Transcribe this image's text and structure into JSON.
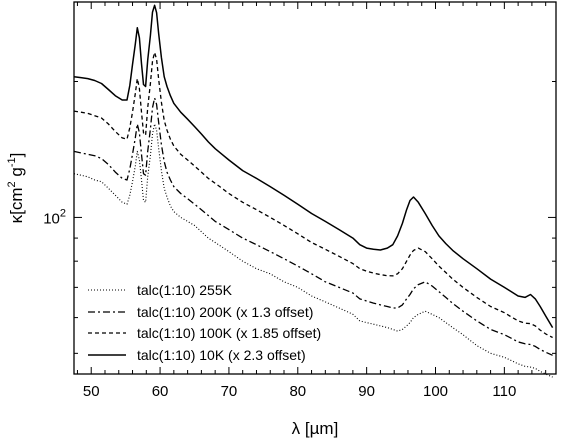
{
  "chart_data": {
    "type": "line",
    "xlabel": "λ [µm]",
    "ylabel": {
      "base": "κ[cm",
      "sup1": "2",
      "mid": " g",
      "sup2": "-1",
      "end": "]"
    },
    "xlim": [
      47.5,
      117.5
    ],
    "ylim": [
      45,
      300
    ],
    "yscale": "log",
    "x_ticks": [
      {
        "value": 50,
        "label": "50"
      },
      {
        "value": 60,
        "label": "60"
      },
      {
        "value": 70,
        "label": "70"
      },
      {
        "value": 80,
        "label": "80"
      },
      {
        "value": 90,
        "label": "90"
      },
      {
        "value": 100,
        "label": "100"
      },
      {
        "value": 110,
        "label": "110"
      }
    ],
    "y_ticks": [
      {
        "value": 100,
        "base": "10",
        "exp": "2"
      }
    ],
    "legend_position": "bottom-left",
    "x": [
      47.5,
      48.5,
      49.5,
      50.5,
      51.5,
      52.5,
      53.5,
      54.5,
      55.2,
      55.6,
      56.0,
      56.4,
      56.7,
      57.0,
      57.3,
      57.6,
      57.9,
      58.2,
      58.6,
      58.9,
      59.2,
      59.5,
      59.8,
      60.2,
      60.6,
      61.0,
      61.5,
      62.0,
      63.0,
      64.0,
      65.0,
      66.0,
      67.0,
      68.0,
      69.0,
      70.0,
      72.0,
      74.0,
      76.0,
      78.0,
      80.0,
      82.0,
      84.0,
      86.0,
      88.0,
      89.0,
      90.0,
      91.0,
      92.0,
      93.0,
      93.8,
      94.5,
      95.2,
      95.8,
      96.3,
      96.8,
      97.5,
      98.5,
      99.5,
      100.5,
      101.5,
      102.5,
      104.0,
      106.0,
      108.0,
      110.0,
      111.0,
      112.0,
      113.0,
      113.8,
      114.5,
      115.2,
      116.0,
      117.0
    ],
    "series": [
      {
        "name": "talc(1:10) 255K",
        "style": "dotted",
        "values": [
          125,
          124,
          123,
          121,
          120,
          116,
          112,
          108,
          107,
          112,
          120,
          130,
          140,
          134,
          121,
          109,
          108,
          123,
          137,
          153,
          161,
          156,
          142,
          127,
          116,
          111,
          106,
          103,
          100,
          98,
          96,
          93,
          90,
          88,
          86,
          84,
          80,
          77,
          75,
          72,
          70,
          67,
          65,
          63,
          61,
          59,
          58.5,
          58,
          57.5,
          57,
          56.5,
          56,
          56.5,
          57.5,
          58.5,
          60,
          61,
          62,
          61,
          60,
          58.5,
          57,
          55,
          52,
          50,
          49,
          48.2,
          47.4,
          46.8,
          46.6,
          46.3,
          45.6,
          45.0,
          44.3
        ]
      },
      {
        "name": "talc(1:10) 200K (x 1.3 offset)",
        "style": "dashdot",
        "values": [
          140,
          139,
          138,
          137,
          135,
          131,
          126,
          122,
          121,
          128,
          138,
          150,
          161,
          154,
          138,
          125,
          124,
          140,
          157,
          175,
          184,
          178,
          162,
          145,
          133,
          126,
          121,
          117,
          113,
          110,
          107,
          104,
          101,
          98,
          96,
          94,
          90,
          87,
          84,
          81,
          78,
          75,
          72,
          70,
          68,
          66,
          65.3,
          64.6,
          64,
          63.5,
          63,
          63,
          64,
          66,
          67.5,
          69.5,
          71,
          72,
          70.5,
          68.5,
          66.5,
          64.5,
          62,
          59,
          56.5,
          55,
          54,
          53,
          52.5,
          52.3,
          51.8,
          51,
          50.3,
          49.5
        ]
      },
      {
        "name": "talc(1:10) 100K (x 1.85 offset)",
        "style": "dashed",
        "values": [
          172,
          171,
          170,
          168,
          166,
          161,
          155,
          150,
          149,
          158,
          171,
          188,
          203,
          193,
          171,
          154,
          152,
          175,
          198,
          222,
          232,
          224,
          202,
          180,
          164,
          156,
          149,
          144,
          138,
          134,
          130,
          126,
          122,
          119,
          116,
          113,
          108,
          104,
          100,
          96,
          92,
          88,
          85,
          82,
          79,
          77,
          76,
          75.3,
          74.7,
          74.3,
          74.2,
          75,
          77,
          80,
          82.5,
          84.5,
          85.5,
          84,
          81,
          78,
          75.5,
          73,
          70,
          66.5,
          63.5,
          61.5,
          60.2,
          59,
          58.3,
          58.2,
          57.5,
          56.3,
          55.2,
          54.2
        ]
      },
      {
        "name": "talc(1:10) 10K (x 2.3 offset)",
        "style": "solid",
        "values": [
          205,
          204,
          203,
          201,
          198,
          192,
          186,
          182,
          182,
          196,
          218,
          242,
          263,
          250,
          219,
          197,
          195,
          223,
          253,
          285,
          295,
          284,
          255,
          226,
          205,
          195,
          186,
          179,
          171,
          165,
          159,
          153,
          147,
          142,
          138,
          134,
          127,
          122,
          117,
          112,
          107,
          102,
          98,
          94,
          90,
          87,
          85.5,
          85,
          84.7,
          85.5,
          87,
          91,
          97,
          104,
          109,
          111,
          108,
          102,
          96,
          91,
          87.5,
          84.5,
          81,
          77,
          73,
          70,
          68.5,
          67,
          66.5,
          67.5,
          66,
          63.5,
          60.5,
          57
        ]
      }
    ]
  }
}
